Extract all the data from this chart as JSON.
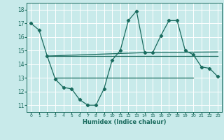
{
  "xlabel": "Humidex (Indice chaleur)",
  "background_color": "#c8eaea",
  "grid_color": "#b8d8d8",
  "line_color": "#1a6b5e",
  "xlim": [
    -0.5,
    23.5
  ],
  "ylim": [
    10.5,
    18.5
  ],
  "yticks": [
    11,
    12,
    13,
    14,
    15,
    16,
    17,
    18
  ],
  "xticks": [
    0,
    1,
    2,
    3,
    4,
    5,
    6,
    7,
    8,
    9,
    10,
    11,
    12,
    13,
    14,
    15,
    16,
    17,
    18,
    19,
    20,
    21,
    22,
    23
  ],
  "series_main": {
    "x": [
      0,
      1,
      2,
      3,
      4,
      5,
      6,
      7,
      8,
      9,
      10,
      11,
      12,
      13,
      14,
      15,
      16,
      17,
      18,
      19,
      20,
      21,
      22,
      23
    ],
    "y": [
      17.0,
      16.5,
      14.6,
      12.9,
      12.3,
      12.2,
      11.4,
      11.0,
      11.0,
      12.2,
      14.3,
      15.0,
      17.2,
      17.9,
      14.85,
      14.85,
      16.1,
      17.2,
      17.2,
      15.0,
      14.7,
      13.8,
      13.7,
      13.1
    ]
  },
  "flat_lines": [
    {
      "x": [
        2,
        23
      ],
      "y": [
        14.6,
        14.6
      ]
    },
    {
      "x": [
        3,
        20
      ],
      "y": [
        13.0,
        13.0
      ]
    },
    {
      "x": [
        2,
        14,
        23
      ],
      "y": [
        14.6,
        14.85,
        14.9
      ]
    }
  ]
}
